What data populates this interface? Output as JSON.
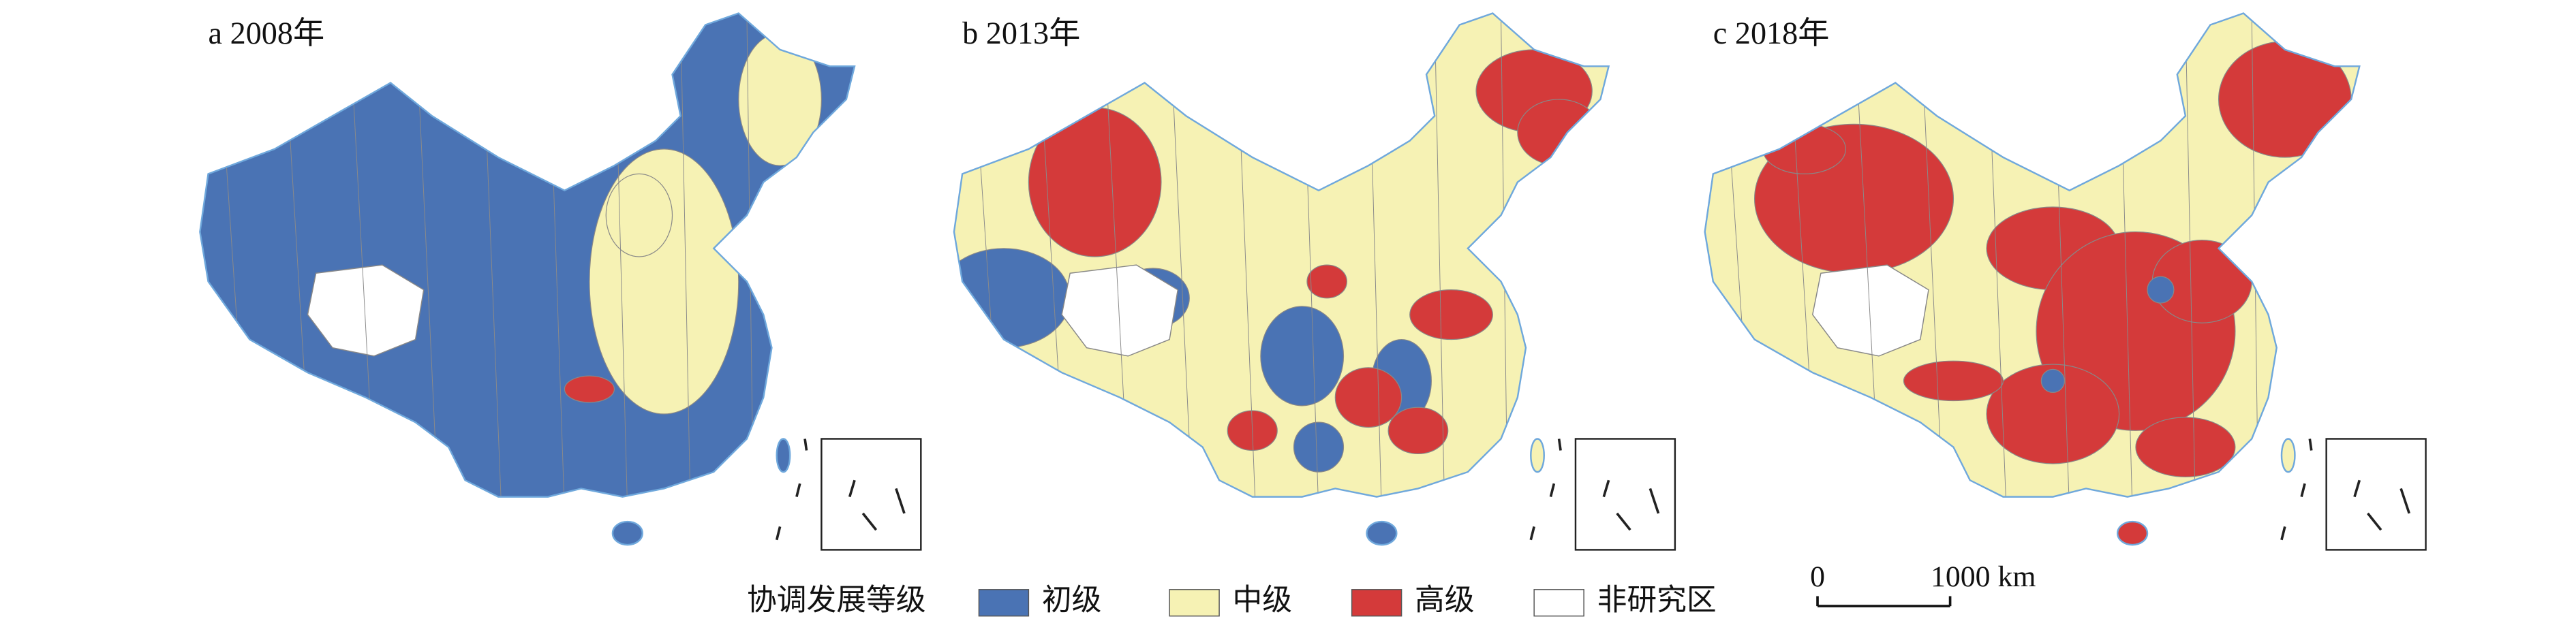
{
  "panels": [
    {
      "label": "a 2008年"
    },
    {
      "label": "b 2013年"
    },
    {
      "label": "c 2018年"
    }
  ],
  "legend": {
    "title": "协调发展等级",
    "items": [
      {
        "label": "初级",
        "color": "#4a73b4"
      },
      {
        "label": "中级",
        "color": "#f6f2b4"
      },
      {
        "label": "高级",
        "color": "#d43a3a"
      },
      {
        "label": "非研究区",
        "color": "#ffffff"
      }
    ]
  },
  "scale_bar": {
    "start": "0",
    "end": "1000 km"
  }
}
